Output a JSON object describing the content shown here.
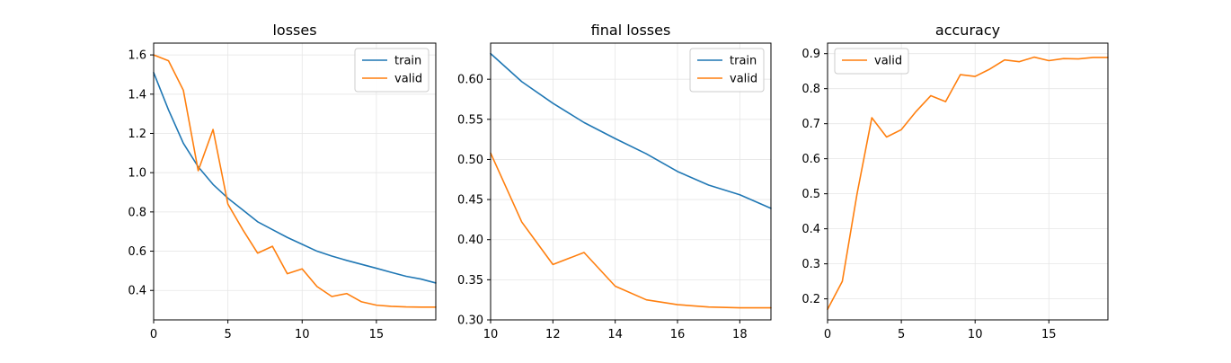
{
  "colors": {
    "train": "#1f77b4",
    "valid": "#ff7f0e",
    "grid": "#e6e6e6"
  },
  "chart_data": [
    {
      "type": "line",
      "title": "losses",
      "xlim": [
        0,
        19
      ],
      "ylim": [
        0.25,
        1.66
      ],
      "xticks": [
        0,
        5,
        10,
        15
      ],
      "yticks": [
        0.4,
        0.6,
        0.8,
        1.0,
        1.2,
        1.4,
        1.6
      ],
      "ytick_format": 1,
      "grid": true,
      "legend": "upper right",
      "series": [
        {
          "name": "train",
          "color": "#1f77b4",
          "x": [
            0,
            1,
            2,
            3,
            4,
            5,
            6,
            7,
            8,
            9,
            10,
            11,
            12,
            13,
            14,
            15,
            16,
            17,
            18,
            19
          ],
          "y": [
            1.51,
            1.32,
            1.15,
            1.03,
            0.94,
            0.87,
            0.81,
            0.75,
            0.71,
            0.67,
            0.635,
            0.6,
            0.575,
            0.553,
            0.533,
            0.513,
            0.492,
            0.472,
            0.458,
            0.438
          ]
        },
        {
          "name": "valid",
          "color": "#ff7f0e",
          "x": [
            0,
            1,
            2,
            3,
            4,
            5,
            6,
            7,
            8,
            9,
            10,
            11,
            12,
            13,
            14,
            15,
            16,
            17,
            18,
            19
          ],
          "y": [
            1.6,
            1.57,
            1.42,
            1.01,
            1.22,
            0.84,
            0.71,
            0.59,
            0.625,
            0.485,
            0.51,
            0.42,
            0.369,
            0.384,
            0.342,
            0.325,
            0.319,
            0.316,
            0.315,
            0.315
          ]
        }
      ]
    },
    {
      "type": "line",
      "title": "final losses",
      "xlim": [
        10,
        19
      ],
      "ylim": [
        0.3,
        0.645
      ],
      "xticks": [
        10,
        12,
        14,
        16,
        18
      ],
      "yticks": [
        0.3,
        0.35,
        0.4,
        0.45,
        0.5,
        0.55,
        0.6
      ],
      "ytick_format": 2,
      "grid": true,
      "legend": "upper right",
      "series": [
        {
          "name": "train",
          "color": "#1f77b4",
          "x": [
            10,
            11,
            12,
            13,
            14,
            15,
            16,
            17,
            18,
            19
          ],
          "y": [
            0.632,
            0.597,
            0.57,
            0.546,
            0.526,
            0.507,
            0.485,
            0.468,
            0.456,
            0.439
          ]
        },
        {
          "name": "valid",
          "color": "#ff7f0e",
          "x": [
            10,
            11,
            12,
            13,
            14,
            15,
            16,
            17,
            18,
            19
          ],
          "y": [
            0.508,
            0.422,
            0.369,
            0.384,
            0.342,
            0.325,
            0.319,
            0.316,
            0.315,
            0.315
          ]
        }
      ]
    },
    {
      "type": "line",
      "title": "accuracy",
      "xlim": [
        0,
        19
      ],
      "ylim": [
        0.14,
        0.93
      ],
      "xticks": [
        0,
        5,
        10,
        15
      ],
      "yticks": [
        0.2,
        0.3,
        0.4,
        0.5,
        0.6,
        0.7,
        0.8,
        0.9
      ],
      "ytick_format": 1,
      "grid": true,
      "legend": "upper left",
      "series": [
        {
          "name": "valid",
          "color": "#ff7f0e",
          "x": [
            0,
            1,
            2,
            3,
            4,
            5,
            6,
            7,
            8,
            9,
            10,
            11,
            12,
            13,
            14,
            15,
            16,
            17,
            18,
            19
          ],
          "y": [
            0.17,
            0.25,
            0.5,
            0.717,
            0.662,
            0.683,
            0.735,
            0.78,
            0.763,
            0.84,
            0.835,
            0.856,
            0.882,
            0.877,
            0.89,
            0.88,
            0.886,
            0.885,
            0.889,
            0.889
          ]
        }
      ]
    }
  ]
}
